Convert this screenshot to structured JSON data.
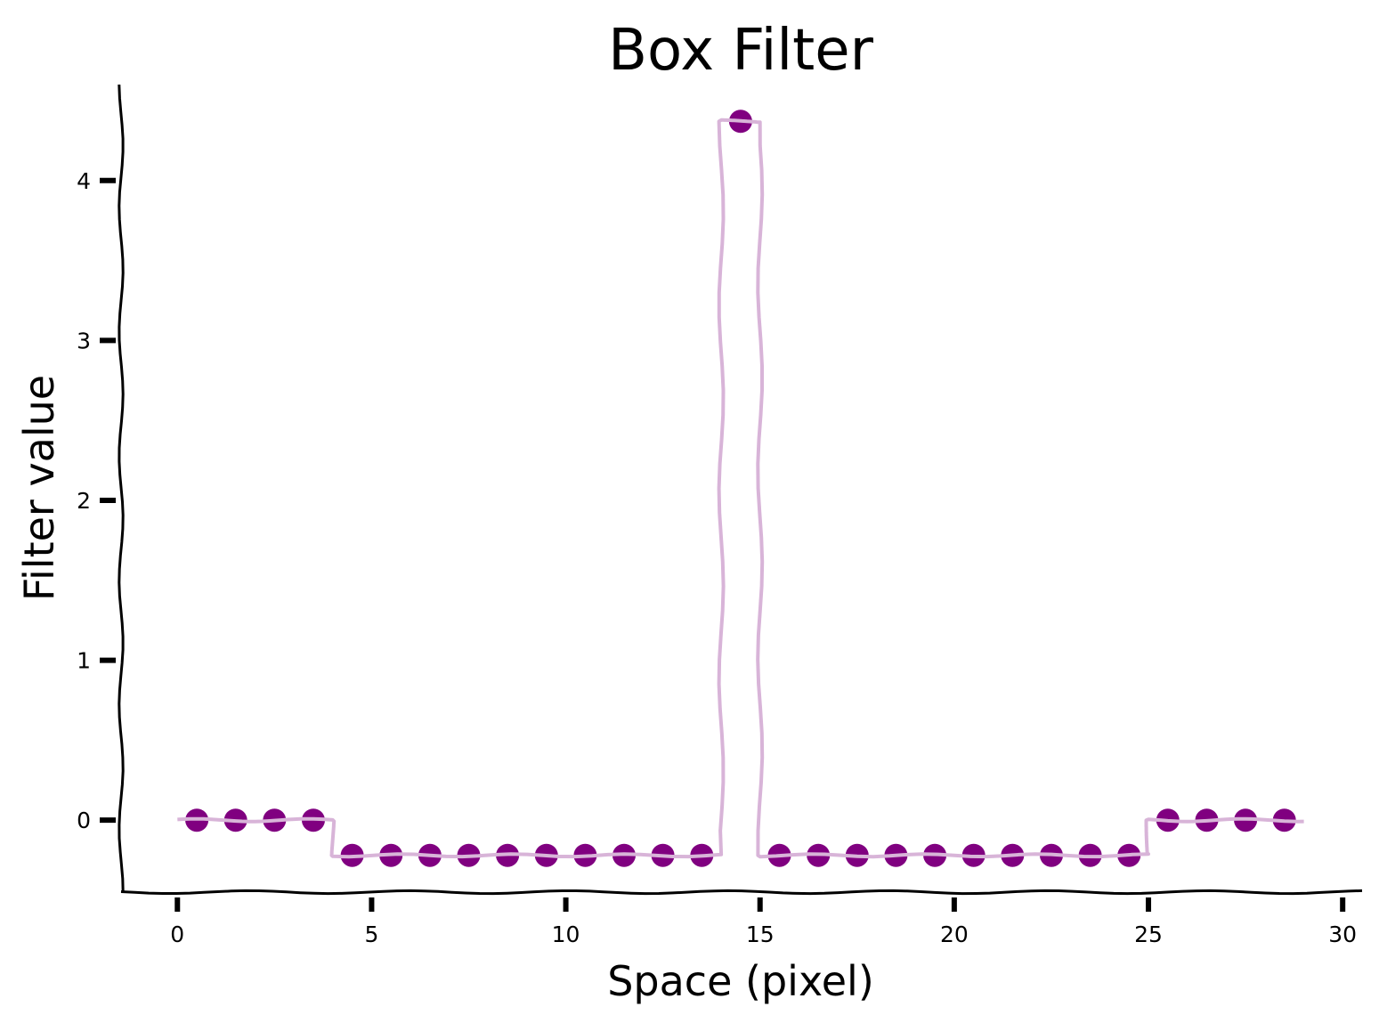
{
  "chart_data": {
    "type": "scatter",
    "title": "Box Filter",
    "xlabel": "Space (pixel)",
    "ylabel": "Filter value",
    "xlim": [
      -1.45,
      30.5
    ],
    "ylim": [
      -0.45,
      4.6
    ],
    "xticks": [
      0,
      5,
      10,
      15,
      20,
      25,
      30
    ],
    "yticks": [
      0,
      1,
      2,
      3,
      4
    ],
    "grid": false,
    "colors": {
      "marker": "#800080",
      "step_line": "#d8b4d8",
      "axis": "#000000"
    },
    "series": [
      {
        "x": [
          0.5,
          1.5,
          2.5,
          3.5,
          4.5,
          5.5,
          6.5,
          7.5,
          8.5,
          9.5,
          10.5,
          11.5,
          12.5,
          13.5,
          14.5,
          15.5,
          16.5,
          17.5,
          18.5,
          19.5,
          20.5,
          21.5,
          22.5,
          23.5,
          24.5,
          25.5,
          26.5,
          27.5,
          28.5
        ],
        "values": [
          0,
          0,
          0,
          0,
          -0.22,
          -0.22,
          -0.22,
          -0.22,
          -0.22,
          -0.22,
          -0.22,
          -0.22,
          -0.22,
          -0.22,
          4.37,
          -0.22,
          -0.22,
          -0.22,
          -0.22,
          -0.22,
          -0.22,
          -0.22,
          -0.22,
          -0.22,
          -0.22,
          0,
          0,
          0,
          0
        ]
      }
    ],
    "step_edges": [
      0,
      4,
      14,
      15,
      25,
      29
    ]
  }
}
